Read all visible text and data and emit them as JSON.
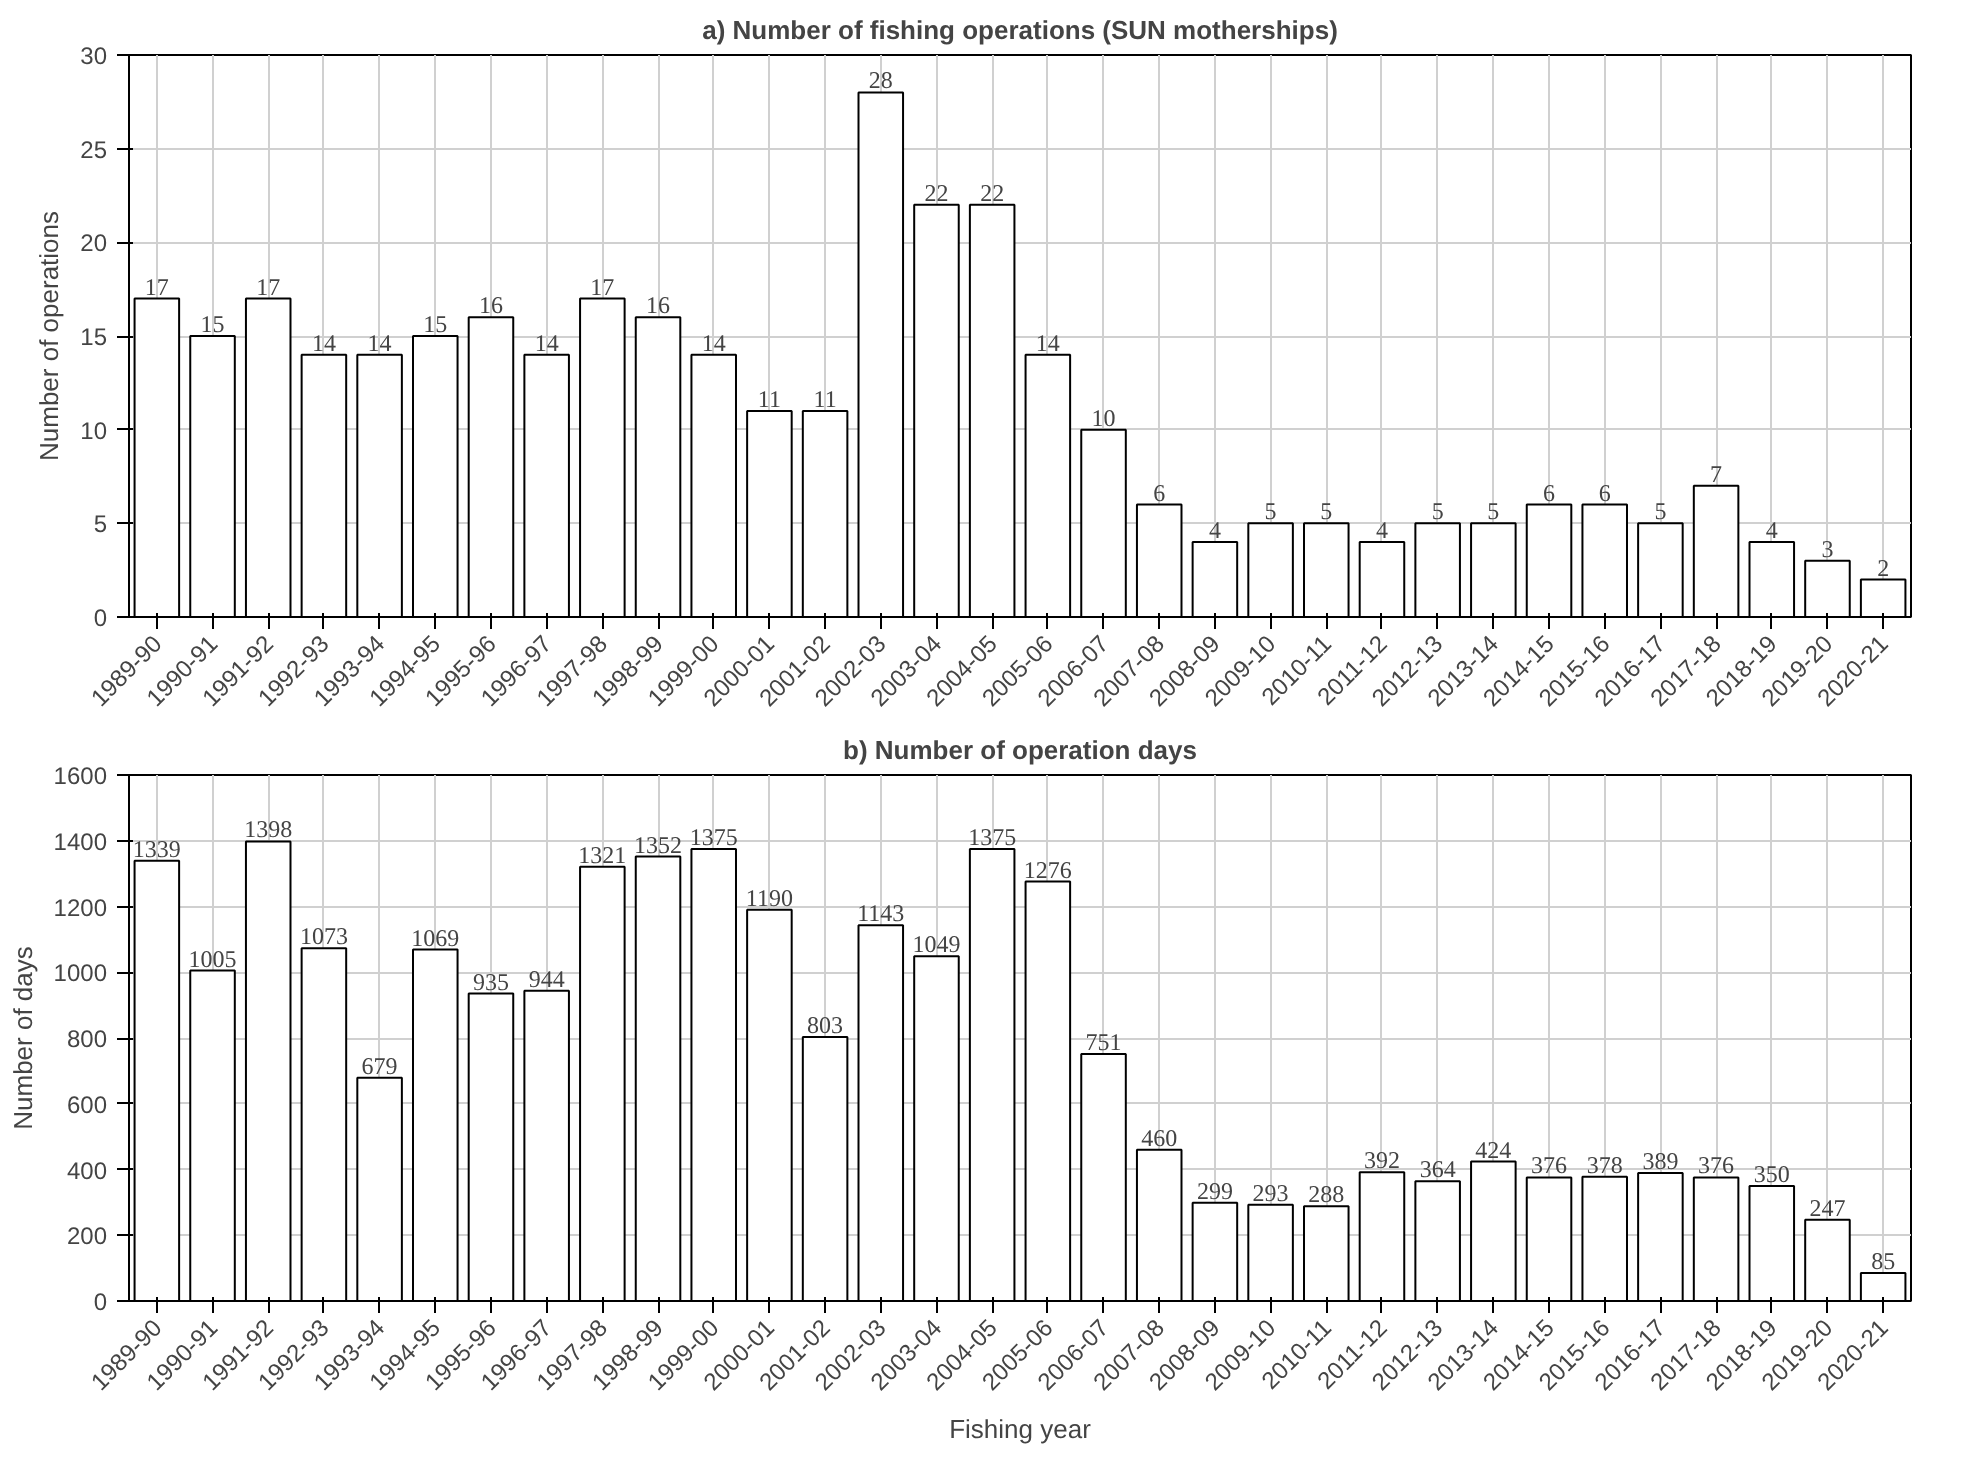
{
  "chart_data": [
    {
      "type": "bar",
      "title": "a) Number of fishing operations (SUN motherships)",
      "ylabel": "Number of operations",
      "categories": [
        "1989-90",
        "1990-91",
        "1991-92",
        "1992-93",
        "1993-94",
        "1994-95",
        "1995-96",
        "1996-97",
        "1997-98",
        "1998-99",
        "1999-00",
        "2000-01",
        "2001-02",
        "2002-03",
        "2003-04",
        "2004-05",
        "2005-06",
        "2006-07",
        "2007-08",
        "2008-09",
        "2009-10",
        "2010-11",
        "2011-12",
        "2012-13",
        "2013-14",
        "2014-15",
        "2015-16",
        "2016-17",
        "2017-18",
        "2018-19",
        "2019-20",
        "2020-21"
      ],
      "values": [
        17,
        15,
        17,
        14,
        14,
        15,
        16,
        14,
        17,
        16,
        14,
        11,
        11,
        28,
        22,
        22,
        14,
        10,
        6,
        4,
        5,
        5,
        4,
        5,
        5,
        6,
        6,
        5,
        7,
        4,
        3,
        2
      ],
      "color": "#ffffff",
      "ylim": [
        0,
        30
      ],
      "yticks": [
        0,
        5,
        10,
        15,
        20,
        25,
        30
      ],
      "grid": true,
      "data_labels": true
    },
    {
      "type": "bar",
      "title": "b) Number of operation days",
      "xlabel": "Fishing year",
      "ylabel": "Number of days",
      "categories": [
        "1989-90",
        "1990-91",
        "1991-92",
        "1992-93",
        "1993-94",
        "1994-95",
        "1995-96",
        "1996-97",
        "1997-98",
        "1998-99",
        "1999-00",
        "2000-01",
        "2001-02",
        "2002-03",
        "2003-04",
        "2004-05",
        "2005-06",
        "2006-07",
        "2007-08",
        "2008-09",
        "2009-10",
        "2010-11",
        "2011-12",
        "2012-13",
        "2013-14",
        "2014-15",
        "2015-16",
        "2016-17",
        "2017-18",
        "2018-19",
        "2019-20",
        "2020-21"
      ],
      "values": [
        1339,
        1005,
        1398,
        1073,
        679,
        1069,
        935,
        944,
        1321,
        1352,
        1375,
        1190,
        803,
        1143,
        1049,
        1375,
        1276,
        751,
        460,
        299,
        293,
        288,
        392,
        364,
        424,
        376,
        378,
        389,
        376,
        350,
        247,
        85
      ],
      "color": "#ffffff",
      "ylim": [
        0,
        1600
      ],
      "yticks": [
        0,
        200,
        400,
        600,
        800,
        1000,
        1200,
        1400,
        1600
      ],
      "grid": true,
      "data_labels": true
    }
  ]
}
